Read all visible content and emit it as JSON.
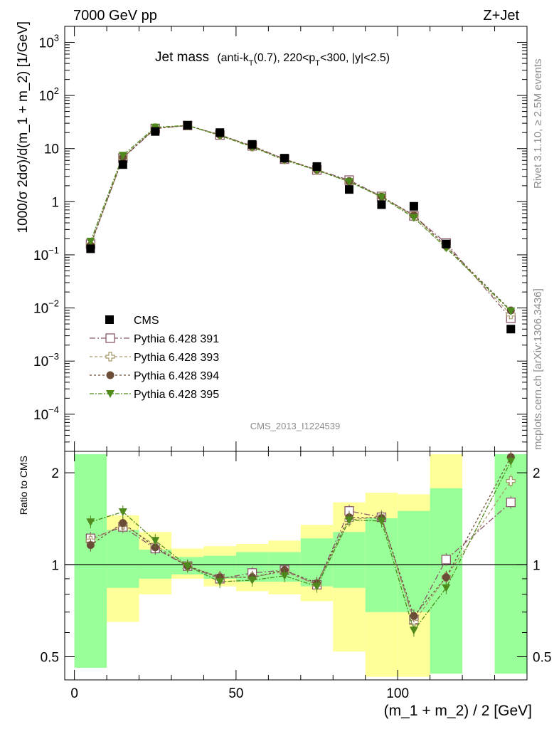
{
  "header": {
    "energy": "7000 GeV pp",
    "process": "Z+Jet",
    "side_rivet": "Rivet 3.1.10, ≥ 2.5M events",
    "side_mcplots": "mcplots.cern.ch [arXiv:1306.3436]",
    "analysis_id": "CMS_2013_I1224539"
  },
  "chart_data": {
    "type": "scatter",
    "title": "Jet mass",
    "subtitle": "(anti-kT(0.7), 220<pT<300, |y|<2.5)",
    "xlabel": "(m_1 + m_2) / 2 [GeV]",
    "ylabel": "1000/σ 2dσ)/d(m_1 + m_2) [1/GeV]",
    "ratio_ylabel": "Ratio to CMS",
    "xlim": [
      -3,
      140
    ],
    "ylim": [
      2e-05,
      2000
    ],
    "yscale": "log",
    "ratio_ylim": [
      0.42,
      2.35
    ],
    "ratio_yscale": "log",
    "x_ticks": [
      "0",
      "50",
      "100"
    ],
    "y_tick_labels": [
      {
        "value": 0.0001,
        "base": "10",
        "exp": "−4"
      },
      {
        "value": 0.001,
        "base": "10",
        "exp": "−3"
      },
      {
        "value": 0.01,
        "base": "10",
        "exp": "−2"
      },
      {
        "value": 0.1,
        "base": "10",
        "exp": "−1"
      },
      {
        "value": 1,
        "base": "1",
        "exp": ""
      },
      {
        "value": 10,
        "base": "10",
        "exp": ""
      },
      {
        "value": 100,
        "base": "10",
        "exp": "2"
      },
      {
        "value": 1000,
        "base": "10",
        "exp": "3"
      }
    ],
    "ratio_ticks": [
      0.5,
      1,
      2
    ],
    "ratio_tick_labels": [
      "0.5",
      "1",
      "2"
    ],
    "bins": [
      [
        0,
        10
      ],
      [
        10,
        20
      ],
      [
        20,
        30
      ],
      [
        30,
        40
      ],
      [
        40,
        50
      ],
      [
        50,
        60
      ],
      [
        60,
        70
      ],
      [
        70,
        80
      ],
      [
        80,
        90
      ],
      [
        90,
        100
      ],
      [
        100,
        110
      ],
      [
        110,
        120
      ],
      [
        130,
        140
      ]
    ],
    "x": [
      5,
      15,
      25,
      35,
      45,
      55,
      65,
      75,
      85,
      95,
      105,
      115,
      135
    ],
    "data": {
      "name": "CMS",
      "values": [
        0.13,
        5.0,
        21.0,
        27.5,
        20.0,
        12.0,
        6.6,
        4.6,
        1.7,
        0.88,
        0.82,
        0.16,
        0.004
      ]
    },
    "band_green": [
      [
        0.46,
        2.3
      ],
      [
        0.84,
        1.3
      ],
      [
        0.9,
        1.12
      ],
      [
        0.93,
        1.06
      ],
      [
        0.9,
        1.07
      ],
      [
        0.88,
        1.1
      ],
      [
        0.88,
        1.1
      ],
      [
        0.85,
        1.22
      ],
      [
        0.84,
        1.28
      ],
      [
        0.7,
        1.42
      ],
      [
        0.7,
        1.5
      ],
      [
        0.44,
        1.78
      ],
      [
        0.44,
        2.3
      ]
    ],
    "band_yellow": [
      [
        0.46,
        2.3
      ],
      [
        0.65,
        1.45
      ],
      [
        0.8,
        1.28
      ],
      [
        0.9,
        1.13
      ],
      [
        0.85,
        1.15
      ],
      [
        0.82,
        1.17
      ],
      [
        0.8,
        1.2
      ],
      [
        0.76,
        1.35
      ],
      [
        0.52,
        1.6
      ],
      [
        0.43,
        1.72
      ],
      [
        0.43,
        1.7
      ],
      [
        0.44,
        2.3
      ],
      [
        0.44,
        2.3
      ]
    ],
    "series": [
      {
        "name": "Pythia 6.428 391",
        "marker": "open-square",
        "color": "#8a5a6a",
        "dash": "8,3,2,3",
        "ratio": [
          1.22,
          1.33,
          1.13,
          0.99,
          0.9,
          0.94,
          0.96,
          0.86,
          1.5,
          1.43,
          0.66,
          1.04,
          1.6
        ]
      },
      {
        "name": "Pythia 6.428 393",
        "marker": "open-cross",
        "color": "#a8996a",
        "dash": "4,3",
        "ratio": [
          1.2,
          1.35,
          1.16,
          0.99,
          0.91,
          0.91,
          0.95,
          0.86,
          1.4,
          1.44,
          0.65,
          0.91,
          1.88
        ]
      },
      {
        "name": "Pythia 6.428 394",
        "marker": "filled-circle",
        "color": "#6b4c36",
        "dash": "3,3",
        "ratio": [
          1.16,
          1.37,
          1.14,
          0.99,
          0.91,
          0.91,
          0.96,
          0.87,
          1.43,
          1.42,
          0.68,
          0.91,
          2.25
        ]
      },
      {
        "name": "Pythia 6.428 395",
        "marker": "filled-triangle-down",
        "color": "#4f8a1c",
        "dash": "6,2,2,2",
        "ratio": [
          1.38,
          1.49,
          1.2,
          0.99,
          0.88,
          0.89,
          0.92,
          0.85,
          1.4,
          1.39,
          0.61,
          0.84,
          2.18
        ]
      }
    ],
    "legend_position": "middle-left"
  }
}
